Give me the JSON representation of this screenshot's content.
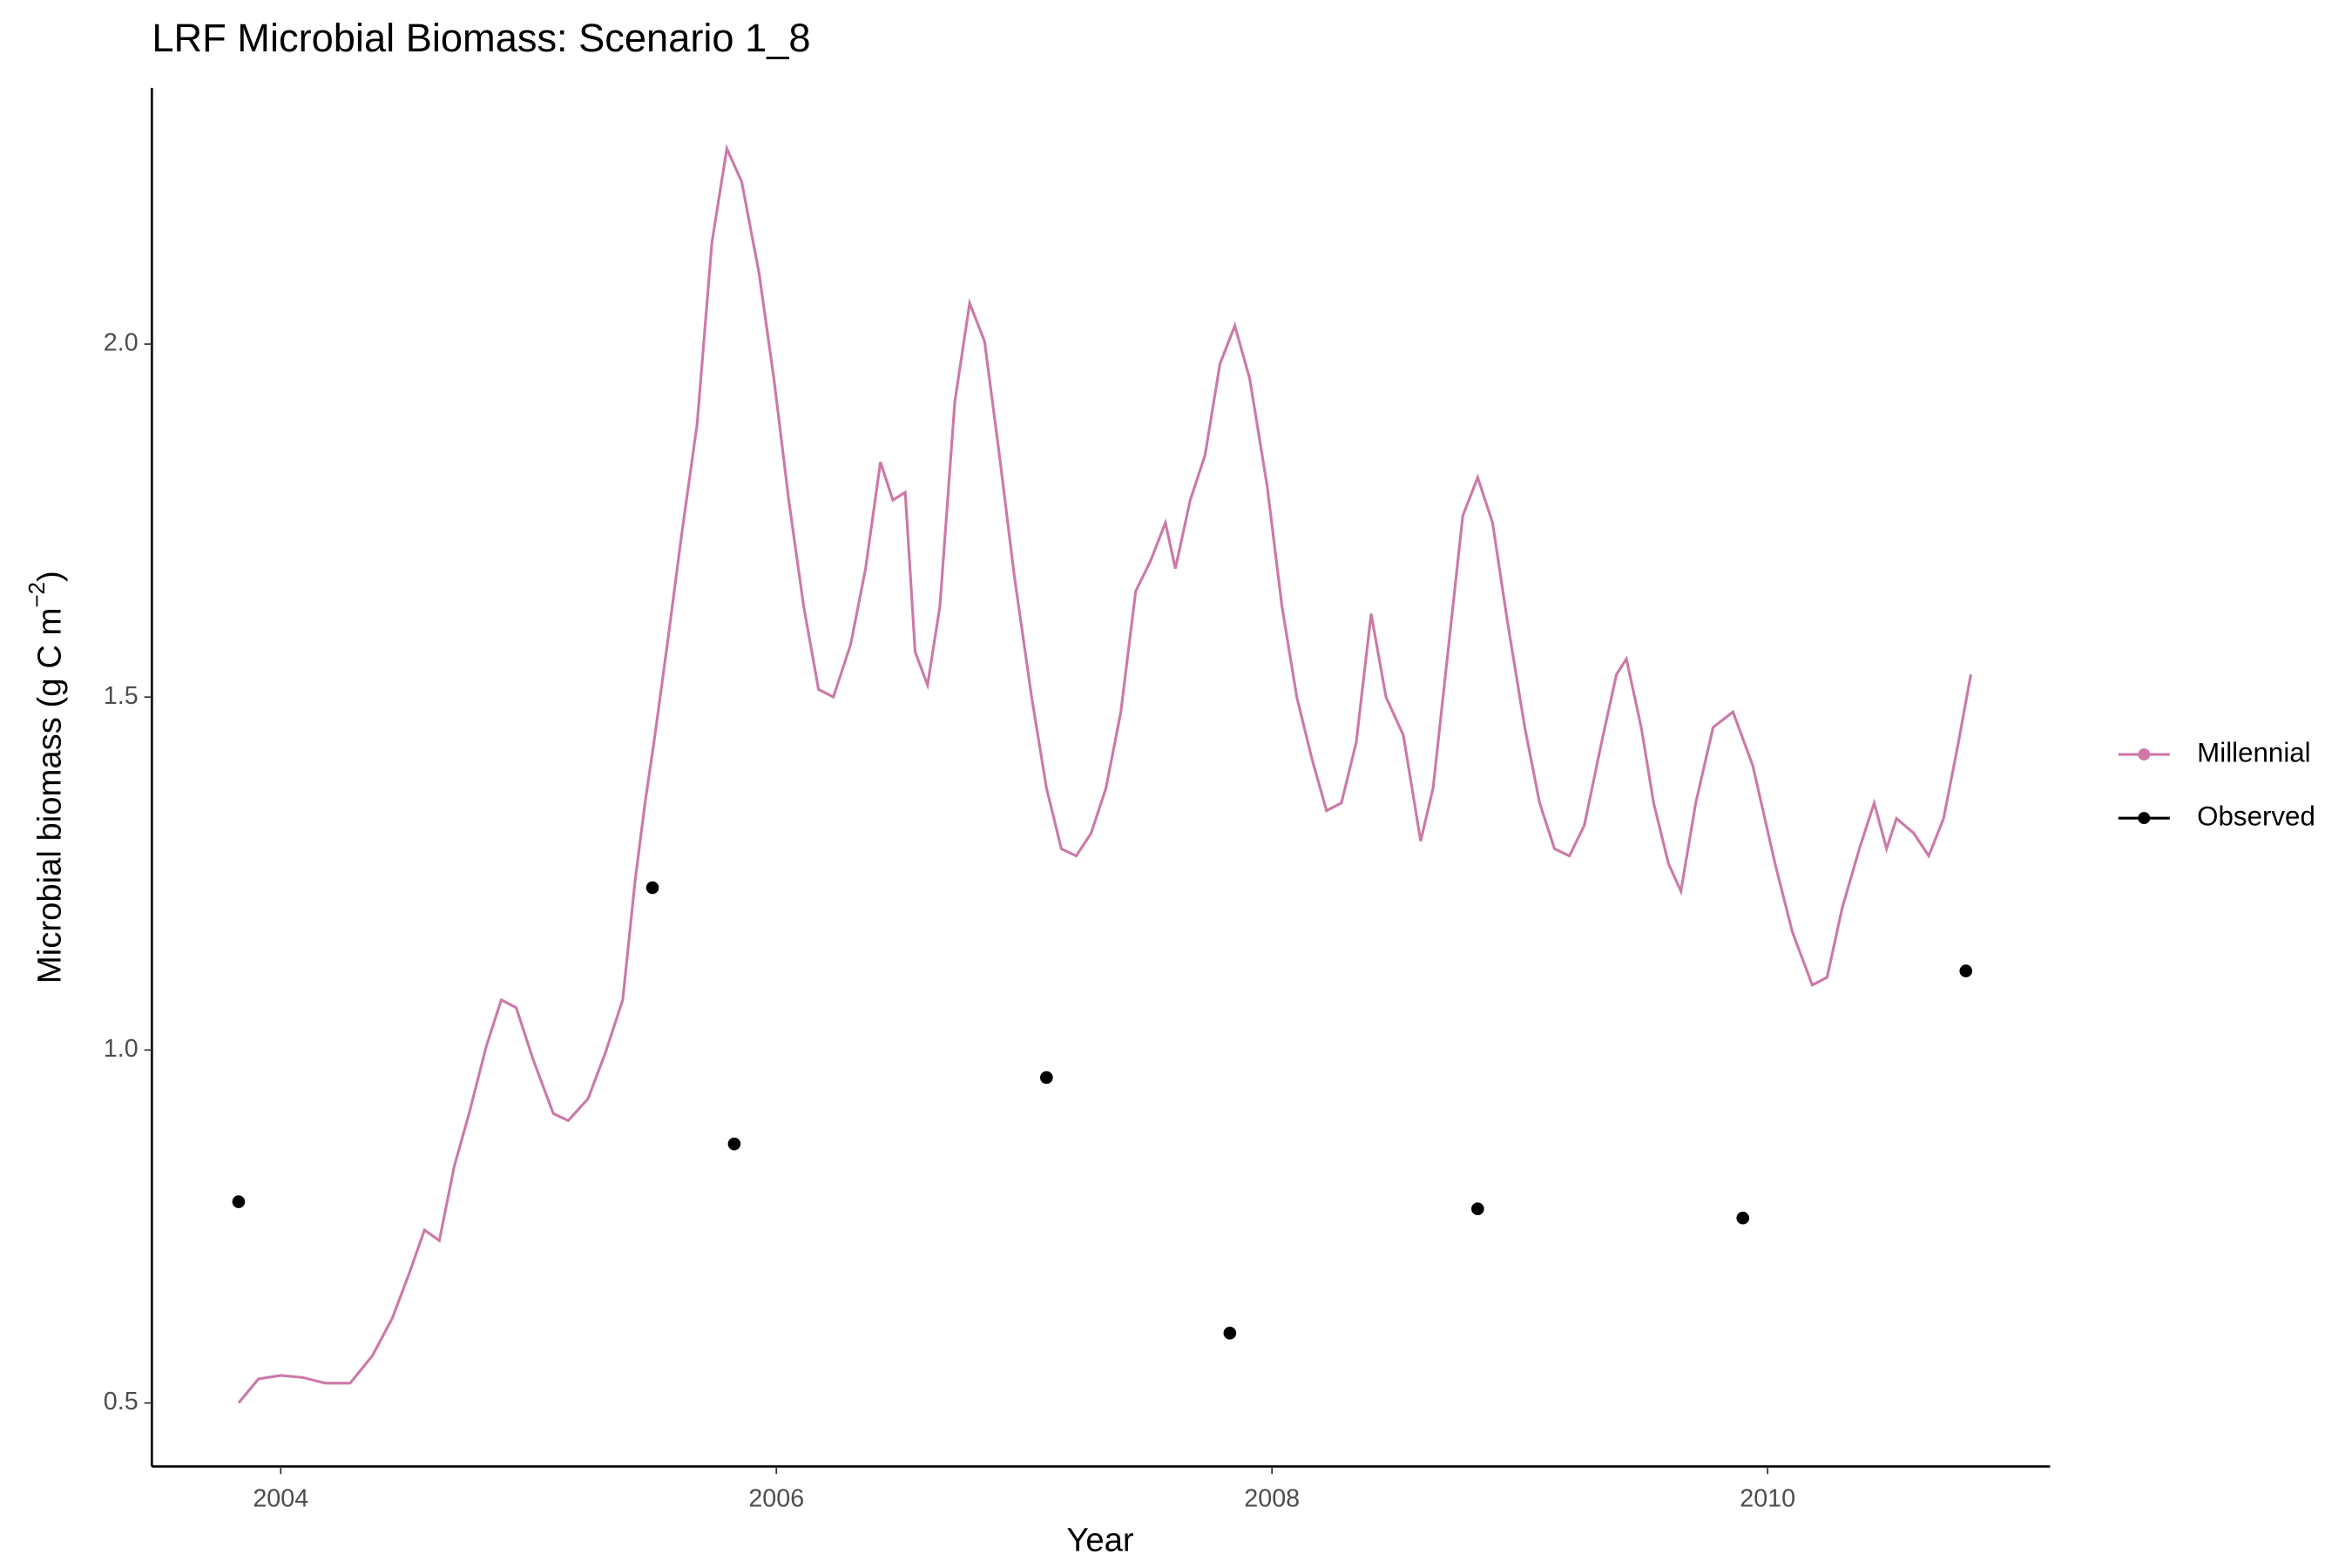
{
  "chart_data": {
    "type": "line",
    "title": "LRF Microbial Biomass: Scenario  1_8",
    "x_label": "Year",
    "y_label": {
      "text": "Microbial biomass (g C m",
      "superscript": "−2",
      "suffix": ")"
    },
    "xlim": [
      2003.48,
      2011.14
    ],
    "ylim": [
      0.41,
      2.363
    ],
    "xticks": [
      2004,
      2006,
      2008,
      2010
    ],
    "yticks": [
      0.5,
      1.0,
      1.5,
      2.0
    ],
    "grid": false,
    "legend": "right",
    "series": [
      {
        "name": "Millennial",
        "type": "line",
        "color": "#cc79a7",
        "x": [
          2003.83,
          2003.91,
          2004.0,
          2004.09,
          2004.18,
          2004.28,
          2004.37,
          2004.45,
          2004.52,
          2004.58,
          2004.64,
          2004.7,
          2004.76,
          2004.83,
          2004.89,
          2004.95,
          2005.02,
          2005.1,
          2005.16,
          2005.24,
          2005.31,
          2005.38,
          2005.43,
          2005.47,
          2005.51,
          2005.56,
          2005.62,
          2005.68,
          2005.74,
          2005.8,
          2005.86,
          2005.93,
          2005.99,
          2006.05,
          2006.11,
          2006.17,
          2006.23,
          2006.3,
          2006.36,
          2006.42,
          2006.47,
          2006.52,
          2006.56,
          2006.61,
          2006.66,
          2006.72,
          2006.78,
          2006.84,
          2006.9,
          2006.96,
          2007.03,
          2007.09,
          2007.15,
          2007.21,
          2007.27,
          2007.33,
          2007.39,
          2007.45,
          2007.51,
          2007.57,
          2007.61,
          2007.67,
          2007.73,
          2007.79,
          2007.85,
          2007.91,
          2007.98,
          2008.04,
          2008.1,
          2008.16,
          2008.22,
          2008.28,
          2008.34,
          2008.4,
          2008.46,
          2008.53,
          2008.6,
          2008.65,
          2008.71,
          2008.77,
          2008.83,
          2008.89,
          2008.95,
          2009.02,
          2009.08,
          2009.14,
          2009.2,
          2009.26,
          2009.33,
          2009.39,
          2009.43,
          2009.49,
          2009.54,
          2009.6,
          2009.65,
          2009.71,
          2009.78,
          2009.86,
          2009.94,
          2010.03,
          2010.1,
          2010.18,
          2010.24,
          2010.3,
          2010.37,
          2010.43,
          2010.48,
          2010.52,
          2010.59,
          2010.65,
          2010.71,
          2010.77,
          2010.82
        ],
        "values": [
          0.5,
          0.534,
          0.539,
          0.536,
          0.528,
          0.528,
          0.567,
          0.62,
          0.685,
          0.745,
          0.73,
          0.835,
          0.91,
          1.006,
          1.071,
          1.06,
          0.985,
          0.91,
          0.9,
          0.931,
          0.996,
          1.071,
          1.24,
          1.35,
          1.446,
          1.575,
          1.736,
          1.886,
          2.144,
          2.277,
          2.23,
          2.101,
          1.951,
          1.779,
          1.629,
          1.511,
          1.5,
          1.575,
          1.682,
          1.833,
          1.779,
          1.79,
          1.564,
          1.517,
          1.629,
          1.918,
          2.058,
          2.004,
          1.843,
          1.672,
          1.5,
          1.371,
          1.285,
          1.275,
          1.307,
          1.371,
          1.479,
          1.65,
          1.693,
          1.747,
          1.682,
          1.779,
          1.843,
          1.972,
          2.026,
          1.951,
          1.8,
          1.629,
          1.5,
          1.414,
          1.339,
          1.35,
          1.436,
          1.618,
          1.5,
          1.446,
          1.296,
          1.371,
          1.564,
          1.757,
          1.811,
          1.747,
          1.607,
          1.457,
          1.35,
          1.285,
          1.275,
          1.318,
          1.436,
          1.532,
          1.554,
          1.457,
          1.35,
          1.264,
          1.225,
          1.35,
          1.457,
          1.479,
          1.403,
          1.264,
          1.167,
          1.092,
          1.103,
          1.2,
          1.285,
          1.35,
          1.285,
          1.328,
          1.307,
          1.275,
          1.328,
          1.436,
          1.532
        ]
      },
      {
        "name": "Observed",
        "type": "scatter",
        "color": "#000000",
        "x": [
          2003.83,
          2005.5,
          2005.83,
          2007.09,
          2007.83,
          2008.83,
          2009.9,
          2010.8
        ],
        "values": [
          0.785,
          1.23,
          0.867,
          0.961,
          0.599,
          0.775,
          0.762,
          1.112
        ]
      }
    ]
  }
}
